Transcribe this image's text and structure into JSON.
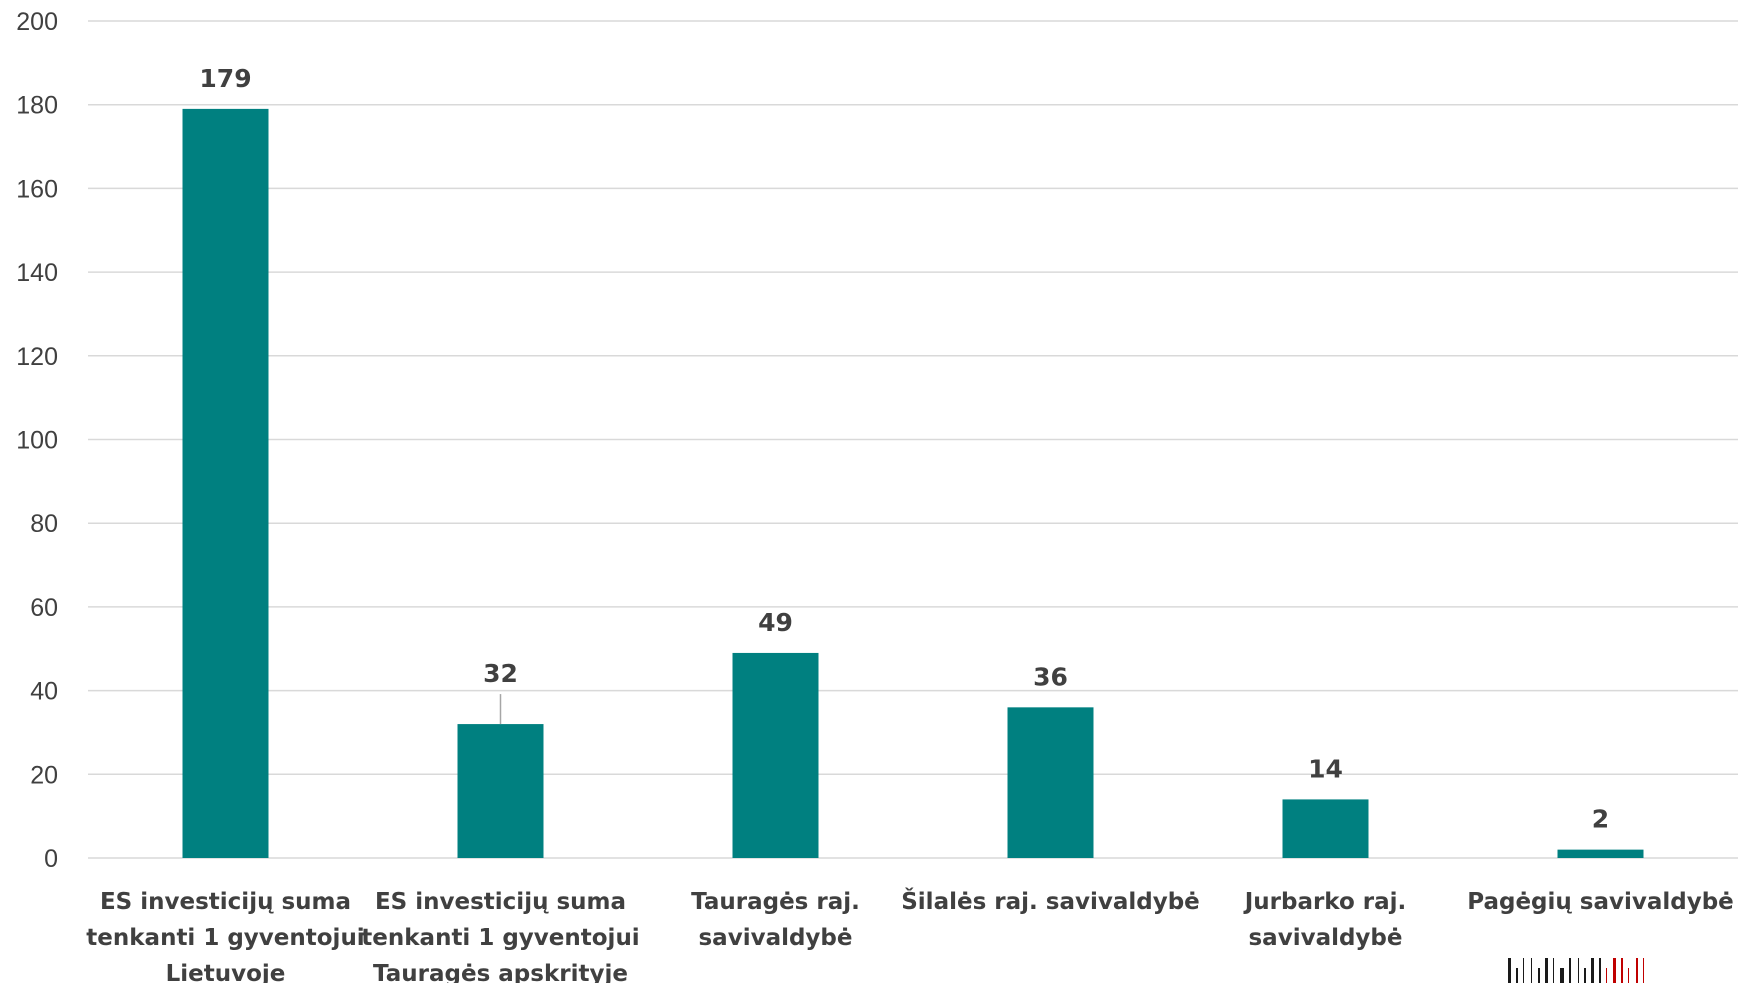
{
  "chart_data": {
    "type": "bar",
    "title": "",
    "xlabel": "",
    "ylabel": "",
    "ylim": [
      0,
      200
    ],
    "yticks": [
      0,
      20,
      40,
      60,
      80,
      100,
      120,
      140,
      160,
      180,
      200
    ],
    "grid": true,
    "legend": "none",
    "categories": [
      [
        "ES investicijų suma",
        "tenkanti 1 gyventojui",
        "Lietuvoje"
      ],
      [
        "ES investicijų suma",
        "tenkanti 1 gyventojui",
        "Tauragės apskrityje"
      ],
      [
        "Tauragės raj.",
        "savivaldybė"
      ],
      [
        "Šilalės raj. savivaldybė"
      ],
      [
        "Jurbarko raj.",
        "savivaldybė"
      ],
      [
        "Pagėgių savivaldybė"
      ]
    ],
    "series": [
      {
        "values": [
          179,
          32,
          49,
          36,
          14,
          2
        ]
      }
    ],
    "colors": {
      "bar": "#008080",
      "grid": "#d9d9d9",
      "text": "#404040"
    }
  }
}
